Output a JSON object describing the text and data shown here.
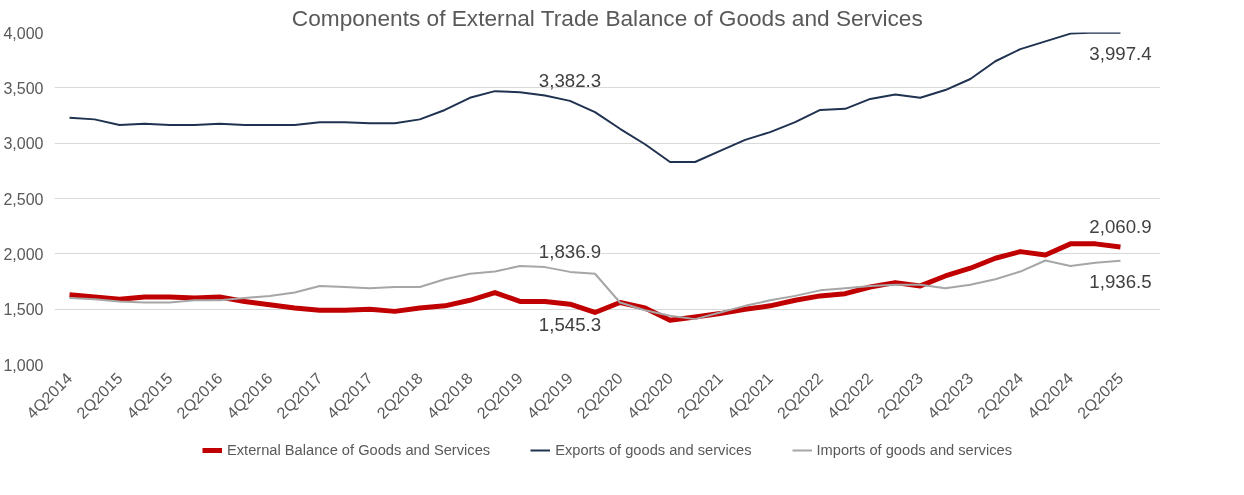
{
  "chart_data": {
    "type": "line",
    "title": "Components of External Trade Balance of Goods and Services",
    "categories": [
      "4Q2014",
      null,
      "2Q2015",
      null,
      "4Q2015",
      null,
      "2Q2016",
      null,
      "4Q2016",
      null,
      "2Q2017",
      null,
      "4Q2017",
      null,
      "2Q2018",
      null,
      "4Q2018",
      null,
      "2Q2019",
      null,
      "4Q2019",
      null,
      "2Q2020",
      null,
      "4Q2020",
      null,
      "2Q2021",
      null,
      "4Q2021",
      null,
      "2Q2022",
      null,
      "4Q2022",
      null,
      "2Q2023",
      null,
      "4Q2023",
      null,
      "2Q2024",
      null,
      "4Q2024",
      null,
      "2Q2025"
    ],
    "ylim": [
      1000,
      4000
    ],
    "yticks": [
      {
        "value": 1000,
        "label": "1,000"
      },
      {
        "value": 1500,
        "label": "1,500"
      },
      {
        "value": 2000,
        "label": "2,000"
      },
      {
        "value": 2500,
        "label": "2,500"
      },
      {
        "value": 3000,
        "label": "3,000"
      },
      {
        "value": 3500,
        "label": "3,500"
      },
      {
        "value": 4000,
        "label": "4,000"
      }
    ],
    "grid": "y",
    "legend": "bottom",
    "line_style": "solid",
    "series": [
      {
        "name": "External Balance of Goods and Services",
        "color": "#c00000",
        "values": [
          1630,
          1610,
          1590,
          1610,
          1610,
          1600,
          1610,
          1570,
          1540,
          1510,
          1490,
          1490,
          1500,
          1480,
          1510,
          1530,
          1580,
          1650,
          1570,
          1570,
          1545.3,
          1470,
          1560,
          1510,
          1400,
          1430,
          1460,
          1500,
          1530,
          1580,
          1620,
          1640,
          1700,
          1740,
          1710,
          1800,
          1870,
          1960,
          2020,
          1990,
          2090,
          2090,
          2060.9
        ],
        "value_labels": [
          null,
          null,
          null,
          null,
          null,
          null,
          null,
          null,
          null,
          null,
          null,
          null,
          null,
          null,
          null,
          null,
          null,
          null,
          null,
          null,
          "1,545.3",
          null,
          null,
          null,
          null,
          null,
          null,
          null,
          null,
          null,
          null,
          null,
          null,
          null,
          null,
          null,
          null,
          null,
          null,
          null,
          null,
          null,
          "2,060.9"
        ]
      },
      {
        "name": "Exports of goods and services",
        "color": "#1f3250",
        "values": [
          3230,
          3215,
          3165,
          3175,
          3165,
          3165,
          3175,
          3165,
          3165,
          3165,
          3190,
          3190,
          3180,
          3180,
          3215,
          3300,
          3410,
          3470,
          3460,
          3430,
          3382.3,
          3280,
          3130,
          2990,
          2830,
          2830,
          2930,
          3030,
          3100,
          3190,
          3300,
          3310,
          3400,
          3440,
          3410,
          3480,
          3580,
          3740,
          3850,
          3920,
          3990,
          4000,
          3997.4
        ],
        "value_labels": [
          null,
          null,
          null,
          null,
          null,
          null,
          null,
          null,
          null,
          null,
          null,
          null,
          null,
          null,
          null,
          null,
          null,
          null,
          null,
          null,
          "3,382.3",
          null,
          null,
          null,
          null,
          null,
          null,
          null,
          null,
          null,
          null,
          null,
          null,
          null,
          null,
          null,
          null,
          null,
          null,
          null,
          null,
          null,
          "3,997.4"
        ]
      },
      {
        "name": "Imports of goods and services",
        "color": "#a6a6a6",
        "values": [
          1600,
          1590,
          1570,
          1560,
          1560,
          1580,
          1580,
          1600,
          1620,
          1650,
          1710,
          1700,
          1690,
          1700,
          1700,
          1770,
          1820,
          1840,
          1890,
          1880,
          1836.9,
          1820,
          1560,
          1490,
          1440,
          1410,
          1470,
          1530,
          1580,
          1620,
          1670,
          1690,
          1710,
          1720,
          1720,
          1690,
          1720,
          1770,
          1840,
          1940,
          1890,
          1920,
          1936.5
        ],
        "value_labels": [
          null,
          null,
          null,
          null,
          null,
          null,
          null,
          null,
          null,
          null,
          null,
          null,
          null,
          null,
          null,
          null,
          null,
          null,
          null,
          null,
          "1,836.9",
          null,
          null,
          null,
          null,
          null,
          null,
          null,
          null,
          null,
          null,
          null,
          null,
          null,
          null,
          null,
          null,
          null,
          null,
          null,
          null,
          null,
          "1,936.5"
        ]
      }
    ]
  }
}
